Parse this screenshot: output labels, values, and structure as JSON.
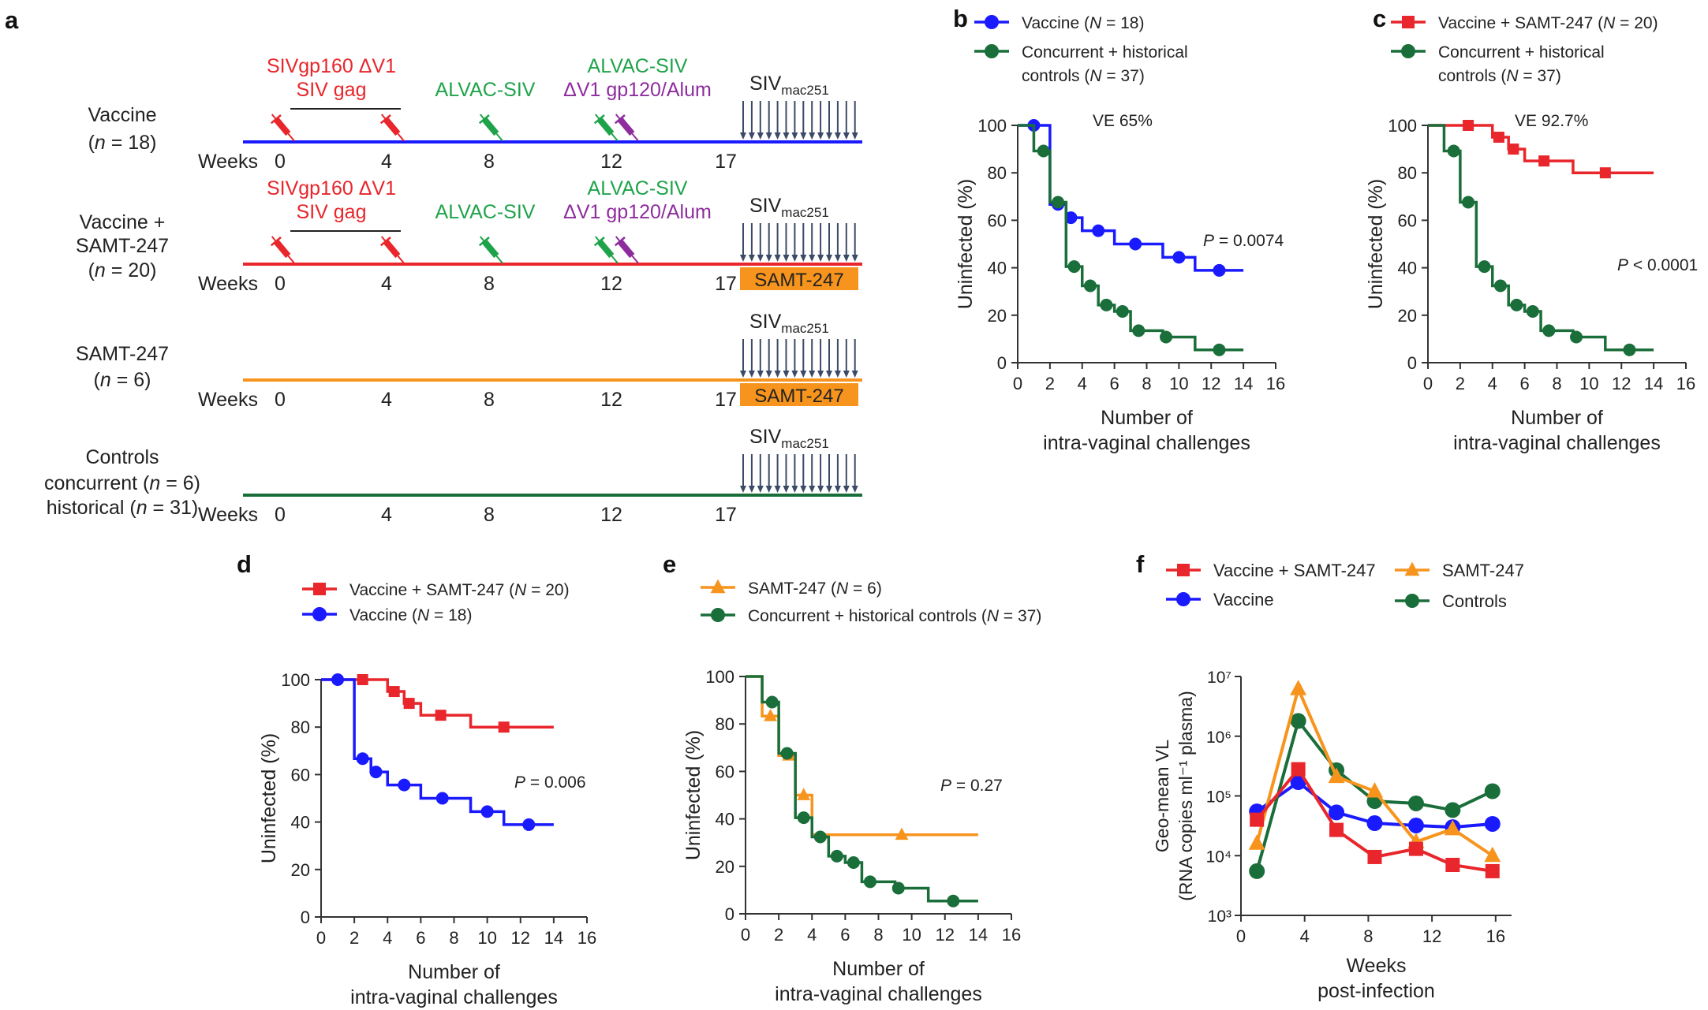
{
  "panel_a": {
    "label": "a",
    "weeks_label": "Weeks",
    "challenge_label": "SIV",
    "challenge_sub": "mac251",
    "prime_line1": "SIVgp160 ΔV1",
    "prime_line2": "SIV gag",
    "alvac_label": "ALVAC-SIV",
    "boost_line1": "ALVAC-SIV",
    "boost_line2": "ΔV1 gp120/Alum",
    "samt_box": "SAMT-247",
    "groups": [
      {
        "name_lines": [
          "Vaccine",
          "(n = 18)"
        ],
        "color": "#1a1aff",
        "ticks": [
          "0",
          "4",
          "8",
          "12",
          "17"
        ]
      },
      {
        "name_lines": [
          "Vaccine +",
          "SAMT-247",
          "(n = 20)"
        ],
        "color": "#e8262b",
        "ticks": [
          "0",
          "4",
          "8",
          "12",
          "17"
        ]
      },
      {
        "name_lines": [
          "SAMT-247",
          "(n = 6)"
        ],
        "color": "#f7941d",
        "ticks": [
          "0",
          "4",
          "8",
          "12",
          "17"
        ]
      },
      {
        "name_lines": [
          "Controls",
          "concurrent (n = 6)",
          "historical (n = 31)"
        ],
        "color": "#1a6e3a",
        "ticks": [
          "0",
          "4",
          "8",
          "12",
          "17"
        ]
      }
    ]
  },
  "chart_data": [
    {
      "panel": "b",
      "type": "line",
      "step": true,
      "xlabel_lines": [
        "Number of",
        "intra-vaginal challenges"
      ],
      "ylabel": "Uninfected (%)",
      "xlim": [
        0,
        16
      ],
      "ylim": [
        0,
        100
      ],
      "xticks": [
        "0",
        "2",
        "4",
        "6",
        "8",
        "10",
        "12",
        "14",
        "16"
      ],
      "yticks": [
        "0",
        "20",
        "40",
        "60",
        "80",
        "100"
      ],
      "annotation": "VE 65%",
      "pvalue": "P = 0.0074",
      "series": [
        {
          "name": "Vaccine (N = 18)",
          "color": "#1a1aff",
          "marker": "circle",
          "steps": [
            [
              0,
              100
            ],
            [
              2,
              100
            ],
            [
              2,
              66.7
            ],
            [
              3,
              66.7
            ],
            [
              3,
              61.1
            ],
            [
              4,
              61.1
            ],
            [
              4,
              55.6
            ],
            [
              6,
              55.6
            ],
            [
              6,
              50
            ],
            [
              9,
              50
            ],
            [
              9,
              44.4
            ],
            [
              11,
              44.4
            ],
            [
              11,
              38.9
            ],
            [
              14,
              38.9
            ]
          ],
          "markers": [
            [
              1,
              100
            ],
            [
              2.5,
              66.7
            ],
            [
              3.3,
              61.1
            ],
            [
              5,
              55.6
            ],
            [
              7.3,
              50
            ],
            [
              10,
              44.4
            ],
            [
              12.5,
              38.9
            ]
          ]
        },
        {
          "name": "Concurrent + historical controls (N = 37)",
          "color": "#1a6e3a",
          "marker": "circle",
          "steps": [
            [
              0,
              100
            ],
            [
              1,
              100
            ],
            [
              1,
              89.2
            ],
            [
              2,
              89.2
            ],
            [
              2,
              67.6
            ],
            [
              3,
              67.6
            ],
            [
              3,
              40.5
            ],
            [
              4,
              40.5
            ],
            [
              4,
              32.4
            ],
            [
              5,
              32.4
            ],
            [
              5,
              24.3
            ],
            [
              6,
              24.3
            ],
            [
              6,
              21.6
            ],
            [
              7,
              21.6
            ],
            [
              7,
              13.5
            ],
            [
              9,
              13.5
            ],
            [
              9,
              10.8
            ],
            [
              11,
              10.8
            ],
            [
              11,
              5.4
            ],
            [
              14,
              5.4
            ]
          ],
          "markers": [
            [
              1.6,
              89.2
            ],
            [
              2.5,
              67.6
            ],
            [
              3.5,
              40.5
            ],
            [
              4.5,
              32.4
            ],
            [
              5.5,
              24.3
            ],
            [
              6.5,
              21.6
            ],
            [
              7.5,
              13.5
            ],
            [
              9.2,
              10.8
            ],
            [
              12.5,
              5.4
            ]
          ]
        }
      ]
    },
    {
      "panel": "c",
      "type": "line",
      "step": true,
      "xlabel_lines": [
        "Number of",
        "intra-vaginal challenges"
      ],
      "ylabel": "Uninfected (%)",
      "xlim": [
        0,
        16
      ],
      "ylim": [
        0,
        100
      ],
      "xticks": [
        "0",
        "2",
        "4",
        "6",
        "8",
        "10",
        "12",
        "14",
        "16"
      ],
      "yticks": [
        "0",
        "20",
        "40",
        "60",
        "80",
        "100"
      ],
      "annotation": "VE 92.7%",
      "pvalue": "P < 0.0001",
      "series": [
        {
          "name": "Vaccine + SAMT-247 (N = 20)",
          "color": "#e8262b",
          "marker": "square",
          "steps": [
            [
              0,
              100
            ],
            [
              4,
              100
            ],
            [
              4,
              95
            ],
            [
              5,
              95
            ],
            [
              5,
              90
            ],
            [
              6,
              90
            ],
            [
              6,
              85
            ],
            [
              9,
              85
            ],
            [
              9,
              80
            ],
            [
              14,
              80
            ]
          ],
          "markers": [
            [
              2.5,
              100
            ],
            [
              4.4,
              95
            ],
            [
              5.3,
              90
            ],
            [
              7.2,
              85
            ],
            [
              11,
              80
            ]
          ]
        },
        {
          "name": "Concurrent + historical controls (N = 37)",
          "color": "#1a6e3a",
          "marker": "circle",
          "steps": [
            [
              0,
              100
            ],
            [
              1,
              100
            ],
            [
              1,
              89.2
            ],
            [
              2,
              89.2
            ],
            [
              2,
              67.6
            ],
            [
              3,
              67.6
            ],
            [
              3,
              40.5
            ],
            [
              4,
              40.5
            ],
            [
              4,
              32.4
            ],
            [
              5,
              32.4
            ],
            [
              5,
              24.3
            ],
            [
              6,
              24.3
            ],
            [
              6,
              21.6
            ],
            [
              7,
              21.6
            ],
            [
              7,
              13.5
            ],
            [
              9,
              13.5
            ],
            [
              9,
              10.8
            ],
            [
              11,
              10.8
            ],
            [
              11,
              5.4
            ],
            [
              14,
              5.4
            ]
          ],
          "markers": [
            [
              1.6,
              89.2
            ],
            [
              2.5,
              67.6
            ],
            [
              3.5,
              40.5
            ],
            [
              4.5,
              32.4
            ],
            [
              5.5,
              24.3
            ],
            [
              6.5,
              21.6
            ],
            [
              7.5,
              13.5
            ],
            [
              9.2,
              10.8
            ],
            [
              12.5,
              5.4
            ]
          ]
        }
      ]
    },
    {
      "panel": "d",
      "type": "line",
      "step": true,
      "xlabel_lines": [
        "Number of",
        "intra-vaginal challenges"
      ],
      "ylabel": "Uninfected (%)",
      "xlim": [
        0,
        16
      ],
      "ylim": [
        0,
        100
      ],
      "xticks": [
        "0",
        "2",
        "4",
        "6",
        "8",
        "10",
        "12",
        "14",
        "16"
      ],
      "yticks": [
        "0",
        "20",
        "40",
        "60",
        "80",
        "100"
      ],
      "annotation": "",
      "pvalue": "P = 0.006",
      "series": [
        {
          "name": "Vaccine + SAMT-247 (N = 20)",
          "color": "#e8262b",
          "marker": "square",
          "steps": [
            [
              0,
              100
            ],
            [
              4,
              100
            ],
            [
              4,
              95
            ],
            [
              5,
              95
            ],
            [
              5,
              90
            ],
            [
              6,
              90
            ],
            [
              6,
              85
            ],
            [
              9,
              85
            ],
            [
              9,
              80
            ],
            [
              14,
              80
            ]
          ],
          "markers": [
            [
              2.5,
              100
            ],
            [
              4.4,
              95
            ],
            [
              5.3,
              90
            ],
            [
              7.2,
              85
            ],
            [
              11,
              80
            ]
          ]
        },
        {
          "name": "Vaccine (N = 18)",
          "color": "#1a1aff",
          "marker": "circle",
          "steps": [
            [
              0,
              100
            ],
            [
              2,
              100
            ],
            [
              2,
              66.7
            ],
            [
              3,
              66.7
            ],
            [
              3,
              61.1
            ],
            [
              4,
              61.1
            ],
            [
              4,
              55.6
            ],
            [
              6,
              55.6
            ],
            [
              6,
              50
            ],
            [
              9,
              50
            ],
            [
              9,
              44.4
            ],
            [
              11,
              44.4
            ],
            [
              11,
              38.9
            ],
            [
              14,
              38.9
            ]
          ],
          "markers": [
            [
              1,
              100
            ],
            [
              2.5,
              66.7
            ],
            [
              3.3,
              61.1
            ],
            [
              5,
              55.6
            ],
            [
              7.3,
              50
            ],
            [
              10,
              44.4
            ],
            [
              12.5,
              38.9
            ]
          ]
        }
      ]
    },
    {
      "panel": "e",
      "type": "line",
      "step": true,
      "xlabel_lines": [
        "Number of",
        "intra-vaginal challenges"
      ],
      "ylabel": "Uninfected (%)",
      "xlim": [
        0,
        16
      ],
      "ylim": [
        0,
        100
      ],
      "xticks": [
        "0",
        "2",
        "4",
        "6",
        "8",
        "10",
        "12",
        "14",
        "16"
      ],
      "yticks": [
        "0",
        "20",
        "40",
        "60",
        "80",
        "100"
      ],
      "annotation": "",
      "pvalue": "P = 0.27",
      "series": [
        {
          "name": "SAMT-247 (N = 6)",
          "color": "#f7941d",
          "marker": "triangle",
          "steps": [
            [
              0,
              100
            ],
            [
              1,
              100
            ],
            [
              1,
              83.3
            ],
            [
              2,
              83.3
            ],
            [
              2,
              66.7
            ],
            [
              3,
              66.7
            ],
            [
              3,
              50
            ],
            [
              4,
              50
            ],
            [
              4,
              33.3
            ],
            [
              14,
              33.3
            ]
          ],
          "markers": [
            [
              1.5,
              83.3
            ],
            [
              2.6,
              66.7
            ],
            [
              3.5,
              50
            ],
            [
              9.4,
              33.3
            ]
          ]
        },
        {
          "name": "Concurrent + historical controls (N = 37)",
          "color": "#1a6e3a",
          "marker": "circle",
          "steps": [
            [
              0,
              100
            ],
            [
              1,
              100
            ],
            [
              1,
              89.2
            ],
            [
              2,
              89.2
            ],
            [
              2,
              67.6
            ],
            [
              3,
              67.6
            ],
            [
              3,
              40.5
            ],
            [
              4,
              40.5
            ],
            [
              4,
              32.4
            ],
            [
              5,
              32.4
            ],
            [
              5,
              24.3
            ],
            [
              6,
              24.3
            ],
            [
              6,
              21.6
            ],
            [
              7,
              21.6
            ],
            [
              7,
              13.5
            ],
            [
              9,
              13.5
            ],
            [
              9,
              10.8
            ],
            [
              11,
              10.8
            ],
            [
              11,
              5.4
            ],
            [
              14,
              5.4
            ]
          ],
          "markers": [
            [
              1.6,
              89.2
            ],
            [
              2.5,
              67.6
            ],
            [
              3.5,
              40.5
            ],
            [
              4.5,
              32.4
            ],
            [
              5.5,
              24.3
            ],
            [
              6.5,
              21.6
            ],
            [
              7.5,
              13.5
            ],
            [
              9.2,
              10.8
            ],
            [
              12.5,
              5.4
            ]
          ]
        }
      ]
    },
    {
      "panel": "f",
      "type": "line",
      "step": false,
      "ylog": true,
      "xlabel_lines": [
        "Weeks",
        "post-infection"
      ],
      "ylabel_lines": [
        "Geo-mean VL",
        "(RNA copies ml⁻¹ plasma)"
      ],
      "xlim": [
        0,
        17
      ],
      "ylim": [
        1000,
        10000000
      ],
      "xticks": [
        "0",
        "4",
        "8",
        "12",
        "16"
      ],
      "yticks": [
        "10³",
        "10⁴",
        "10⁵",
        "10⁶",
        "10⁷"
      ],
      "series": [
        {
          "name": "Vaccine + SAMT-247",
          "color": "#e8262b",
          "marker": "square",
          "x": [
            1,
            3.6,
            6,
            8.4,
            11,
            13.3,
            15.8
          ],
          "y": [
            40000,
            280000,
            27000,
            9500,
            13000,
            7000,
            5500
          ]
        },
        {
          "name": "SAMT-247",
          "color": "#f7941d",
          "marker": "triangle",
          "x": [
            1,
            3.6,
            6,
            8.4,
            11,
            13.3,
            15.8
          ],
          "y": [
            16000,
            6200000,
            210000,
            120000,
            17000,
            28000,
            10000
          ]
        },
        {
          "name": "Vaccine",
          "color": "#1a1aff",
          "marker": "circle",
          "x": [
            1,
            3.6,
            6,
            8.4,
            11,
            13.3,
            15.8
          ],
          "y": [
            55000,
            170000,
            53000,
            35000,
            32000,
            30000,
            34000
          ]
        },
        {
          "name": "Controls",
          "color": "#1a6e3a",
          "marker": "circle",
          "x": [
            1,
            3.6,
            6,
            8.4,
            11,
            13.3,
            15.8
          ],
          "y": [
            5500,
            1800000,
            270000,
            82000,
            75000,
            58000,
            120000
          ]
        }
      ]
    }
  ]
}
